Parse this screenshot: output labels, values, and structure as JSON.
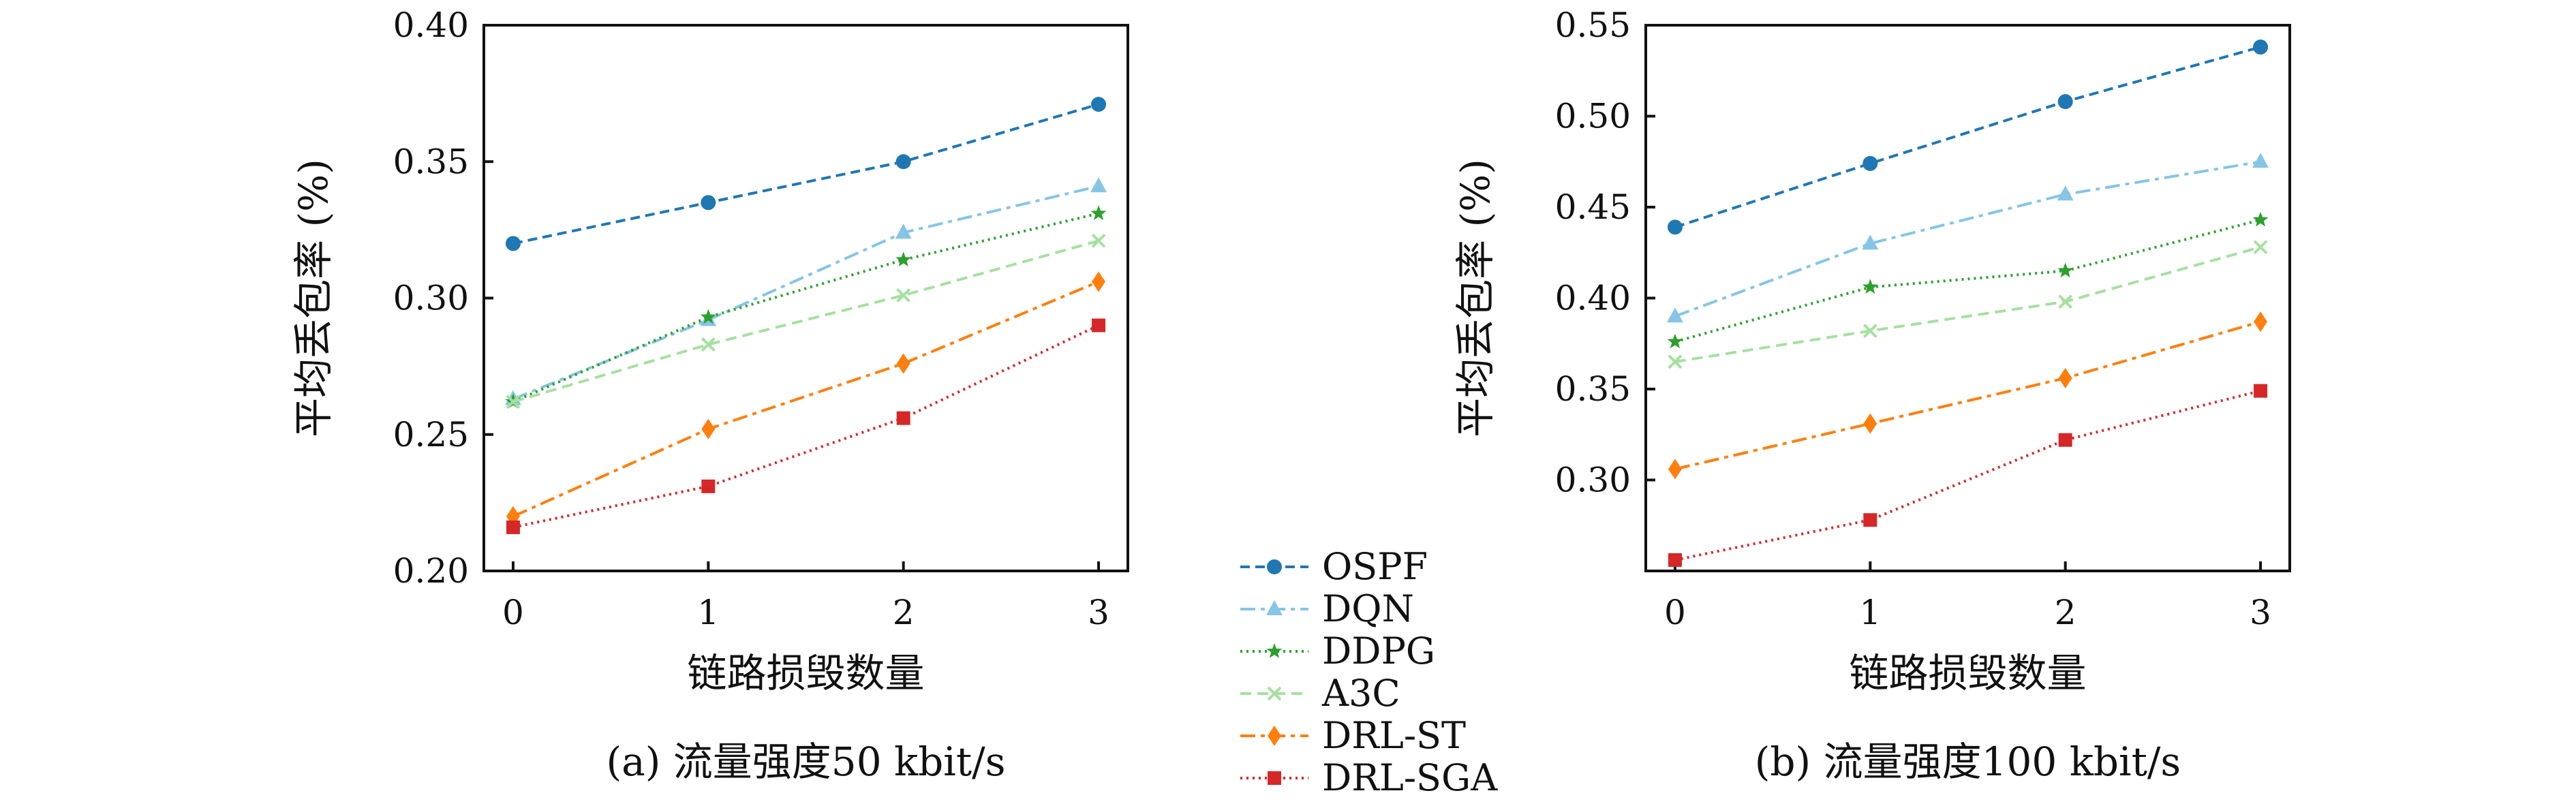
{
  "legend": [
    {
      "name": "OSPF",
      "color": "#1f77b4",
      "dash": "14,8",
      "marker": "circle"
    },
    {
      "name": "DQN",
      "color": "#86c5e6",
      "dash": "22,8,6,8",
      "marker": "triangle"
    },
    {
      "name": "DDPG",
      "color": "#2ca02c",
      "dash": "3,6",
      "marker": "star"
    },
    {
      "name": "A3C",
      "color": "#a6e0a0",
      "dash": "16,9",
      "marker": "cross"
    },
    {
      "name": "DRL-ST",
      "color": "#ff7f0e",
      "dash": "22,8,6,8",
      "marker": "diamond"
    },
    {
      "name": "DRL-SGA",
      "color": "#d62728",
      "dash": "3,6",
      "marker": "square"
    }
  ],
  "chart_data": [
    {
      "type": "line",
      "caption": "(a) 流量强度50 kbit/s",
      "xlabel": "链路损毁数量",
      "ylabel": "平均丢包率 (%)",
      "x": [
        0,
        1,
        2,
        3
      ],
      "xlim": [
        -0.15,
        3.15
      ],
      "ylim": [
        0.2,
        0.4
      ],
      "yticks": [
        "0.20",
        "0.25",
        "0.30",
        "0.35",
        "0.40"
      ],
      "xticks": [
        "0",
        "1",
        "2",
        "3"
      ],
      "series": [
        {
          "name": "OSPF",
          "values": [
            0.32,
            0.335,
            0.35,
            0.371
          ]
        },
        {
          "name": "DQN",
          "values": [
            0.263,
            0.292,
            0.324,
            0.341
          ]
        },
        {
          "name": "DDPG",
          "values": [
            0.262,
            0.293,
            0.314,
            0.331
          ]
        },
        {
          "name": "A3C",
          "values": [
            0.262,
            0.283,
            0.301,
            0.321
          ]
        },
        {
          "name": "DRL-ST",
          "values": [
            0.22,
            0.252,
            0.276,
            0.306
          ]
        },
        {
          "name": "DRL-SGA",
          "values": [
            0.216,
            0.231,
            0.256,
            0.29
          ]
        }
      ]
    },
    {
      "type": "line",
      "caption": "(b) 流量强度100 kbit/s",
      "xlabel": "链路损毁数量",
      "ylabel": "平均丢包率 (%)",
      "x": [
        0,
        1,
        2,
        3
      ],
      "xlim": [
        -0.15,
        3.15
      ],
      "ylim": [
        0.25,
        0.55
      ],
      "yticks": [
        "0.30",
        "0.35",
        "0.40",
        "0.45",
        "0.50",
        "0.55"
      ],
      "xticks": [
        "0",
        "1",
        "2",
        "3"
      ],
      "series": [
        {
          "name": "OSPF",
          "values": [
            0.439,
            0.474,
            0.508,
            0.538
          ]
        },
        {
          "name": "DQN",
          "values": [
            0.39,
            0.43,
            0.457,
            0.475
          ]
        },
        {
          "name": "DDPG",
          "values": [
            0.376,
            0.406,
            0.415,
            0.443
          ]
        },
        {
          "name": "A3C",
          "values": [
            0.365,
            0.382,
            0.398,
            0.428
          ]
        },
        {
          "name": "DRL-ST",
          "values": [
            0.306,
            0.331,
            0.356,
            0.387
          ]
        },
        {
          "name": "DRL-SGA",
          "values": [
            0.256,
            0.278,
            0.322,
            0.349
          ]
        }
      ]
    }
  ]
}
